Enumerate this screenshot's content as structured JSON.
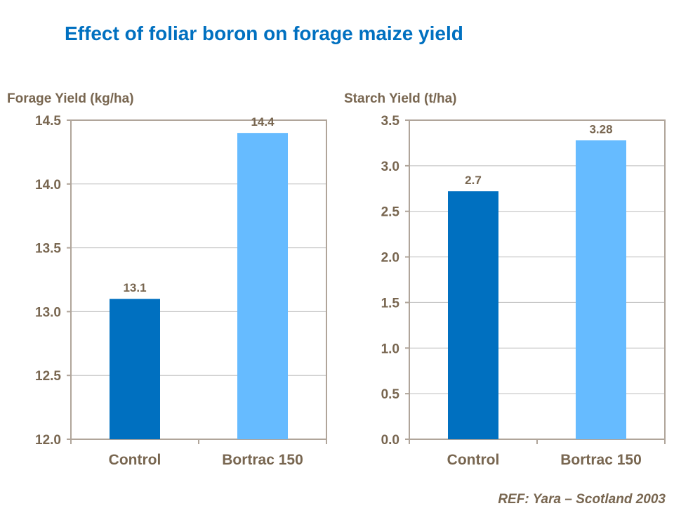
{
  "title": "Effect of foliar boron on forage maize yield",
  "reference": "REF: Yara – Scotland 2003",
  "colors": {
    "control": "#0070C0",
    "treatment": "#66BBFF",
    "text": "#786650",
    "axis": "#B0A59A",
    "grid": "#BDBDBD"
  },
  "chart_data": [
    {
      "type": "bar",
      "ylabel": "Forage Yield (kg/ha)",
      "categories": [
        "Control",
        "Bortrac 150"
      ],
      "values": [
        13.1,
        14.4
      ],
      "data_labels": [
        "13.1",
        "14.4"
      ],
      "ylim": [
        12.0,
        14.5
      ],
      "yticks": [
        "12.0",
        "12.5",
        "13.0",
        "13.5",
        "14.0",
        "14.5"
      ],
      "grid": true
    },
    {
      "type": "bar",
      "ylabel": "Starch Yield (t/ha)",
      "categories": [
        "Control",
        "Bortrac 150"
      ],
      "values": [
        2.72,
        3.28
      ],
      "data_labels": [
        "2.7",
        "3.28"
      ],
      "ylim": [
        0.0,
        3.5
      ],
      "yticks": [
        "0.0",
        "0.5",
        "1.0",
        "1.5",
        "2.0",
        "2.5",
        "3.0",
        "3.5"
      ],
      "grid": true
    }
  ]
}
